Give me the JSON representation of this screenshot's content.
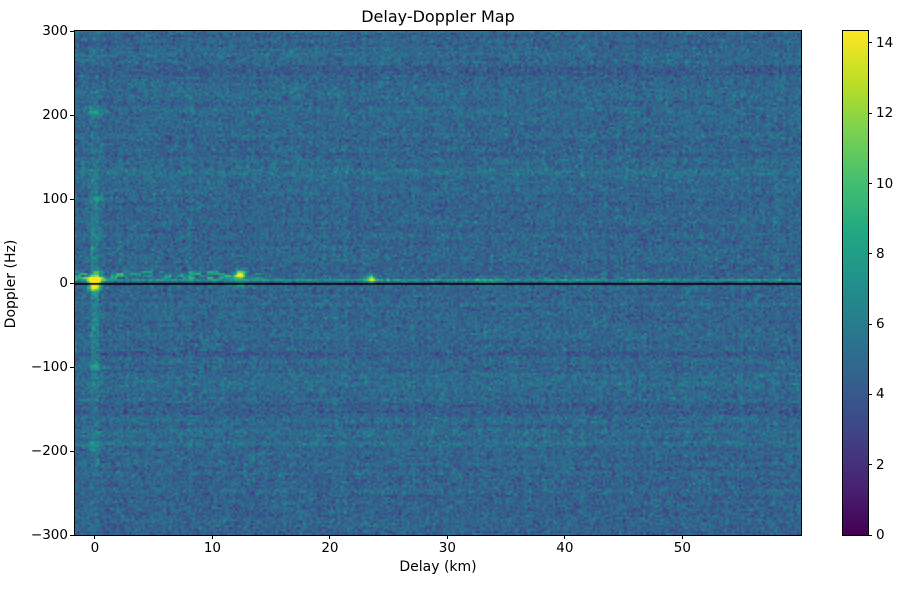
{
  "chart_data": {
    "type": "heatmap",
    "title": "Delay-Doppler Map",
    "xlabel": "Delay (km)",
    "ylabel": "Doppler (Hz)",
    "x_range_km": [
      -1.7,
      60.1
    ],
    "y_range_hz": [
      -300,
      300
    ],
    "x_ticks": [
      0,
      10,
      20,
      30,
      40,
      50
    ],
    "y_ticks": [
      300,
      200,
      100,
      0,
      -100,
      -200,
      -300
    ],
    "grid": false,
    "colormap": "viridis",
    "colormap_stops": [
      "#440154",
      "#482475",
      "#414487",
      "#355f8d",
      "#2a788e",
      "#21918c",
      "#22a884",
      "#44bf70",
      "#7ad151",
      "#bddf26",
      "#fde725"
    ],
    "colorbar": {
      "vmin": 0,
      "vmax": 14.34,
      "ticks": [
        0,
        2,
        4,
        6,
        8,
        10,
        12,
        14
      ],
      "position": "right"
    },
    "background_noise": {
      "mean": 4.7,
      "std": 0.85,
      "min": 2.2,
      "max": 7.6
    },
    "zero_doppler_line": {
      "doppler_hz": -1,
      "color": "#000000"
    },
    "doppler_stripe": {
      "delay_km": 0,
      "half_width_km": 0.3,
      "amplitude": 1.6,
      "decay_hz": 150
    },
    "clutter_band": {
      "doppler_center_hz": 10,
      "doppler_halfwidth_hz": 4.5,
      "delay_start_km": -1.7,
      "delay_end_km": 15.5,
      "peak_amplitude": 4.2,
      "speckle_probability": 0.55
    },
    "zero_ridge": {
      "doppler_hz": 3.5,
      "base_amplitude": 1.9,
      "speckle_amplitude": 1.7
    },
    "features": [
      {
        "name": "direct-path-peak",
        "delay_km": 0,
        "doppler_hz": 3,
        "amplitude": 14.0,
        "sigma_delay_km": 0.4,
        "sigma_doppler_hz": 4.0
      },
      {
        "name": "direct-path-lower-lobe",
        "delay_km": 0,
        "doppler_hz": -6,
        "amplitude": 7.5,
        "sigma_delay_km": 0.35,
        "sigma_doppler_hz": 3.0
      },
      {
        "name": "target-echo-12km",
        "delay_km": 12.35,
        "doppler_hz": 10,
        "amplitude": 11.5,
        "sigma_delay_km": 0.3,
        "sigma_doppler_hz": 3.5
      },
      {
        "name": "target-echo-12km-lower",
        "delay_km": 12.35,
        "doppler_hz": -3,
        "amplitude": 4.0,
        "sigma_delay_km": 0.35,
        "sigma_doppler_hz": 2.5
      },
      {
        "name": "target-echo-23km",
        "delay_km": 23.5,
        "doppler_hz": 5,
        "amplitude": 8.5,
        "sigma_delay_km": 0.25,
        "sigma_doppler_hz": 3.0
      },
      {
        "name": "stripe-dot-plus200",
        "delay_km": 0,
        "doppler_hz": 203,
        "amplitude": 3.0,
        "sigma_delay_km": 0.5,
        "sigma_doppler_hz": 3.0
      },
      {
        "name": "stripe-dot-plus100",
        "delay_km": 0.3,
        "doppler_hz": 100,
        "amplitude": 2.2,
        "sigma_delay_km": 0.5,
        "sigma_doppler_hz": 3.0
      },
      {
        "name": "stripe-dot-minus100",
        "delay_km": 0,
        "doppler_hz": -100,
        "amplitude": 2.2,
        "sigma_delay_km": 0.5,
        "sigma_doppler_hz": 3.0
      },
      {
        "name": "stripe-dot-minus200",
        "delay_km": 0,
        "doppler_hz": -195,
        "amplitude": 1.8,
        "sigma_delay_km": 0.5,
        "sigma_doppler_hz": 3.0
      },
      {
        "name": "ridge-smudge-33km",
        "delay_km": 33.0,
        "doppler_hz": 3,
        "amplitude": 2.4,
        "sigma_delay_km": 0.8,
        "sigma_doppler_hz": 2.0
      },
      {
        "name": "ridge-smudge-46km",
        "delay_km": 46.5,
        "doppler_hz": 3,
        "amplitude": 2.0,
        "sigma_delay_km": 0.7,
        "sigma_doppler_hz": 2.0
      }
    ]
  }
}
